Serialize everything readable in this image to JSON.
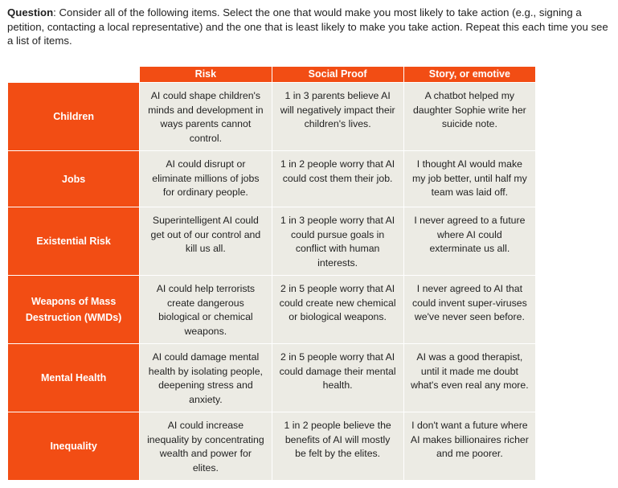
{
  "question": {
    "label": "Question",
    "text": ": Consider all of the following items. Select the one that would make you most likely to take action (e.g., signing a petition, contacting a local representative) and the one that is least likely to make you take action. Repeat this each time you see a list of items."
  },
  "table": {
    "columns": [
      "",
      "Risk",
      "Social Proof",
      "Story, or emotive"
    ],
    "rows": [
      [
        "Children",
        "AI could shape children's minds and development in ways parents cannot control.",
        "1 in 3 parents believe AI will negatively impact their children's lives.",
        "A chatbot helped my daughter Sophie write her suicide note."
      ],
      [
        "Jobs",
        "AI could disrupt or eliminate millions of jobs for ordinary people.",
        "1 in 2 people worry that AI could cost them their job.",
        "I thought AI would make my job better, until half my team was laid off."
      ],
      [
        "Existential Risk",
        "Superintelligent AI could get out of our control and kill us all.",
        "1 in 3 people worry that AI could pursue goals in conflict with human interests.",
        "I never agreed to a future where AI could exterminate us all."
      ],
      [
        "Weapons of Mass Destruction (WMDs)",
        "AI could help terrorists create dangerous biological or chemical weapons.",
        "2 in 5 people worry that AI could create new chemical or biological weapons.",
        "I never agreed to AI that could invent super-viruses we've never seen before."
      ],
      [
        "Mental Health",
        "AI could damage mental health by isolating people, deepening stress and anxiety.",
        "2 in 5 people worry that AI could damage their mental health.",
        "AI was a good therapist, until it made me doubt what's even real any more."
      ],
      [
        "Inequality",
        "AI could increase inequality by concentrating wealth and power for elites.",
        "1 in 2 people believe the benefits of AI will mostly be felt by the elites.",
        "I don't want a future where AI makes billionaires richer and me poorer."
      ]
    ]
  }
}
